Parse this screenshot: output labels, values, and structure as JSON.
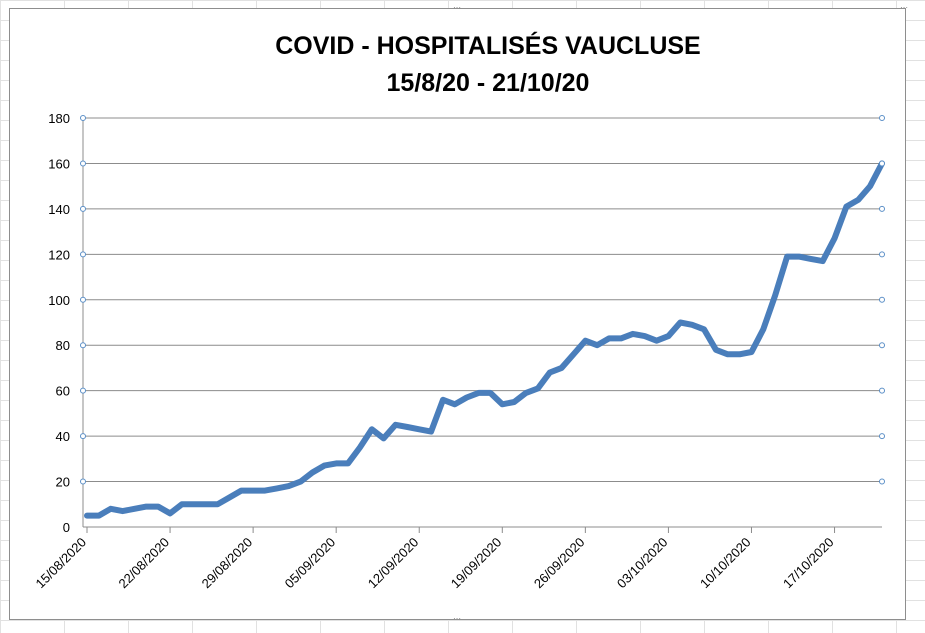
{
  "chart_data": {
    "type": "line",
    "title": "COVID - HOSPITALISÉS VAUCLUSE",
    "subtitle": "15/8/20 - 21/10/20",
    "xlabel": "",
    "ylabel": "",
    "ylim": [
      0,
      180
    ],
    "y_ticks": [
      0,
      20,
      40,
      60,
      80,
      100,
      120,
      140,
      160,
      180
    ],
    "x_ticks": [
      "15/08/2020",
      "22/08/2020",
      "29/08/2020",
      "05/09/2020",
      "12/09/2020",
      "19/09/2020",
      "26/09/2020",
      "03/10/2020",
      "10/10/2020",
      "17/10/2020"
    ],
    "grid": true,
    "legend": "none",
    "line_color": "#4a7ebb",
    "series": [
      {
        "x": [
          "15/08/2020",
          "16/08/2020",
          "17/08/2020",
          "18/08/2020",
          "19/08/2020",
          "20/08/2020",
          "21/08/2020",
          "22/08/2020",
          "23/08/2020",
          "24/08/2020",
          "25/08/2020",
          "26/08/2020",
          "27/08/2020",
          "28/08/2020",
          "29/08/2020",
          "30/08/2020",
          "31/08/2020",
          "01/09/2020",
          "02/09/2020",
          "03/09/2020",
          "04/09/2020",
          "05/09/2020",
          "06/09/2020",
          "07/09/2020",
          "08/09/2020",
          "09/09/2020",
          "10/09/2020",
          "11/09/2020",
          "12/09/2020",
          "13/09/2020",
          "14/09/2020",
          "15/09/2020",
          "16/09/2020",
          "17/09/2020",
          "18/09/2020",
          "19/09/2020",
          "20/09/2020",
          "21/09/2020",
          "22/09/2020",
          "23/09/2020",
          "24/09/2020",
          "25/09/2020",
          "26/09/2020",
          "27/09/2020",
          "28/09/2020",
          "29/09/2020",
          "30/09/2020",
          "01/10/2020",
          "02/10/2020",
          "03/10/2020",
          "04/10/2020",
          "05/10/2020",
          "06/10/2020",
          "07/10/2020",
          "08/10/2020",
          "09/10/2020",
          "10/10/2020",
          "11/10/2020",
          "12/10/2020",
          "13/10/2020",
          "14/10/2020",
          "15/10/2020",
          "16/10/2020",
          "17/10/2020",
          "18/10/2020",
          "19/10/2020",
          "20/10/2020",
          "21/10/2020"
        ],
        "values": [
          5,
          5,
          8,
          7,
          8,
          9,
          9,
          6,
          10,
          10,
          10,
          10,
          13,
          16,
          16,
          16,
          17,
          18,
          20,
          24,
          27,
          28,
          28,
          35,
          43,
          39,
          45,
          44,
          43,
          42,
          56,
          54,
          57,
          59,
          59,
          54,
          55,
          59,
          61,
          68,
          70,
          76,
          82,
          80,
          83,
          83,
          85,
          84,
          82,
          84,
          90,
          89,
          87,
          78,
          76,
          76,
          77,
          87,
          102,
          119,
          119,
          118,
          117,
          127,
          141,
          144,
          150,
          160
        ]
      }
    ]
  }
}
